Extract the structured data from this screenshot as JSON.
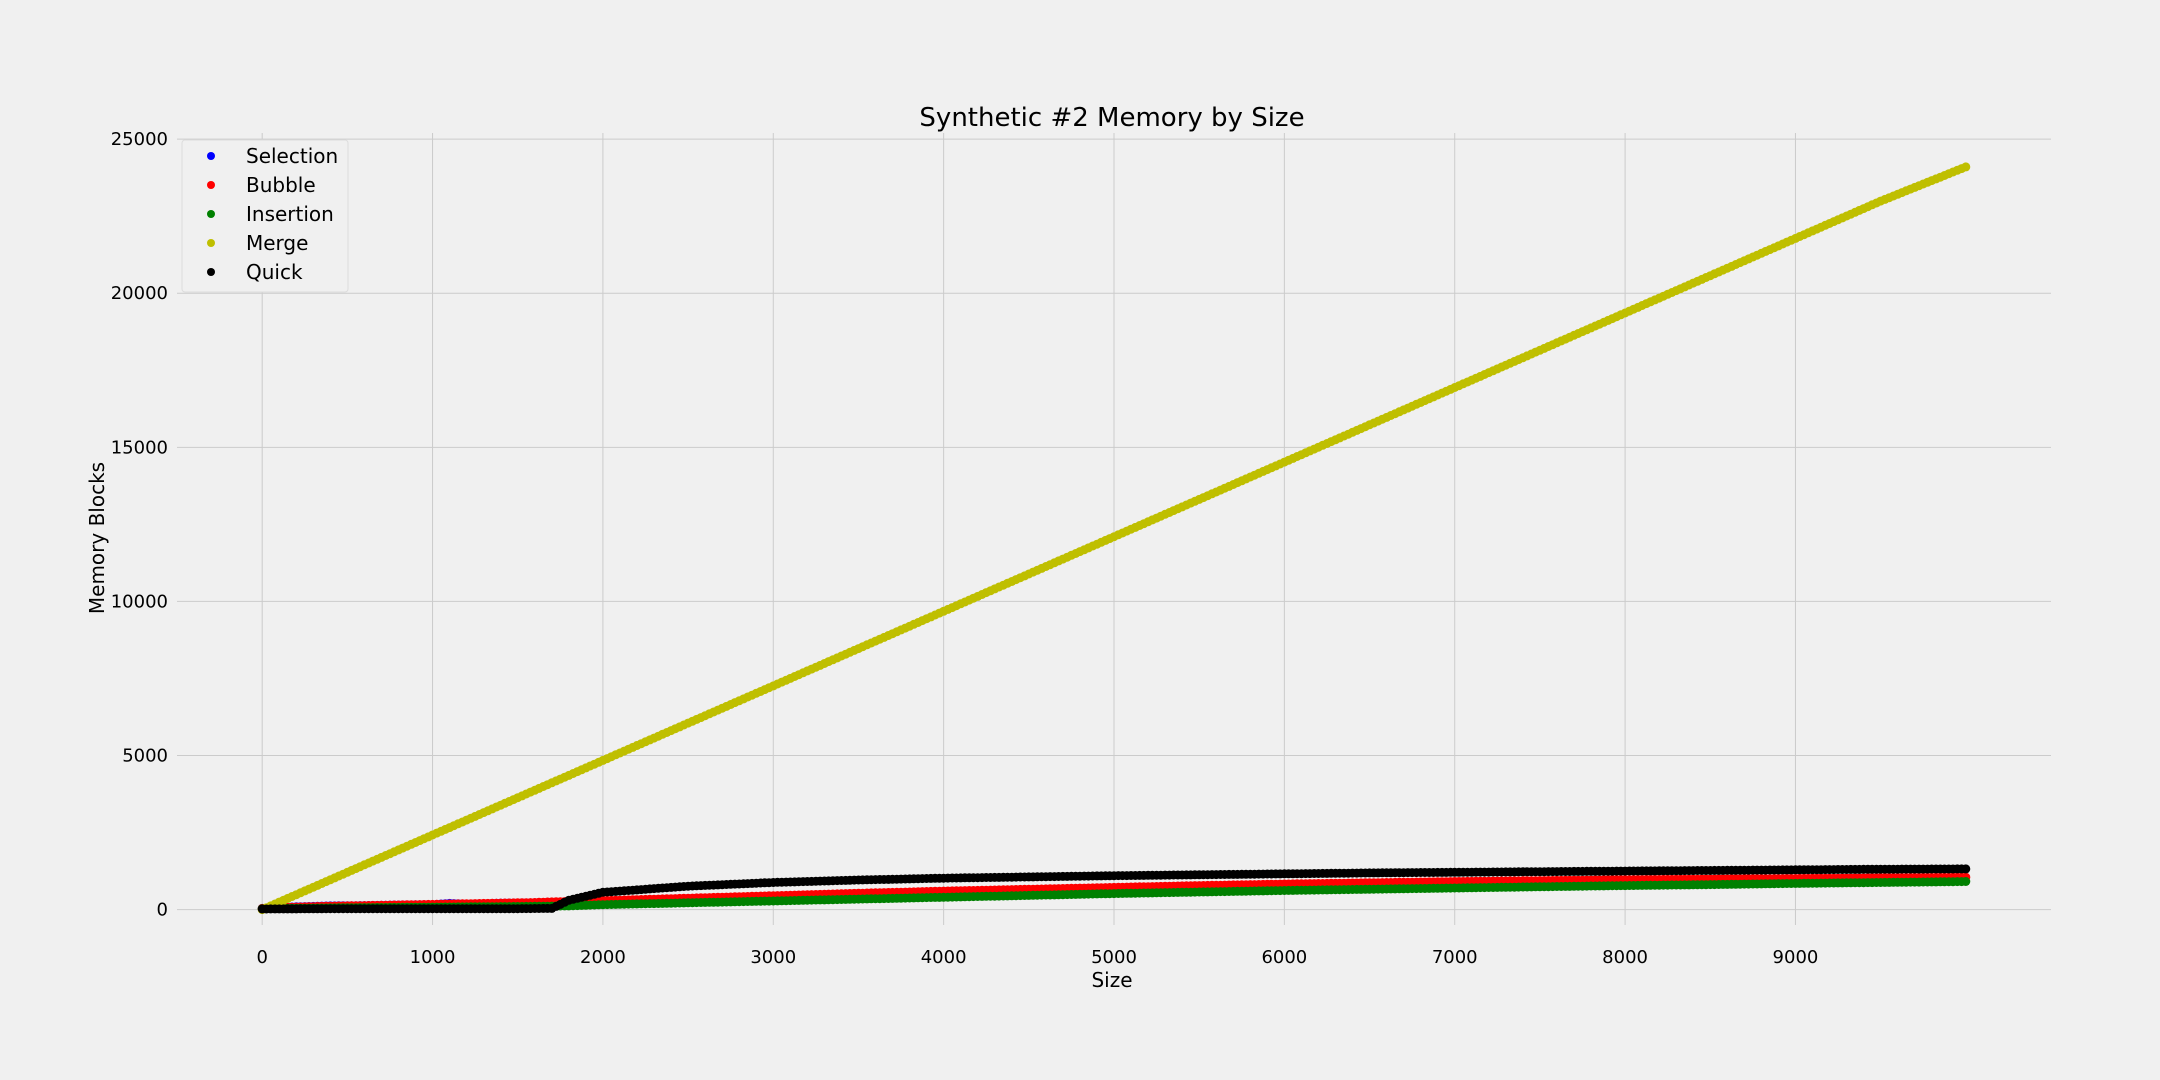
{
  "chart_data": {
    "type": "scatter",
    "title": "Synthetic #2 Memory by Size",
    "xlabel": "Size",
    "ylabel": "Memory Blocks",
    "xlim": [
      -500,
      10500
    ],
    "ylim": [
      -500,
      25200
    ],
    "xticks": [
      0,
      1000,
      2000,
      3000,
      4000,
      5000,
      6000,
      7000,
      8000,
      9000
    ],
    "xtick_labels": [
      "0",
      "1000",
      "2000",
      "3000",
      "4000",
      "5000",
      "6000",
      "7000",
      "8000",
      "9000"
    ],
    "yticks": [
      0,
      5000,
      10000,
      15000,
      20000,
      25000
    ],
    "ytick_labels": [
      "0",
      "5000",
      "10000",
      "15000",
      "20000",
      "25000"
    ],
    "grid": true,
    "legend_position": "top-left",
    "series": [
      {
        "name": "Selection",
        "color": "#0000ff",
        "points": [
          [
            0,
            40
          ],
          [
            200,
            90
          ],
          [
            400,
            120
          ],
          [
            600,
            130
          ],
          [
            800,
            150
          ],
          [
            1000,
            160
          ],
          [
            1100,
            200
          ],
          [
            1200,
            180
          ],
          [
            1300,
            190
          ],
          [
            1400,
            210
          ],
          [
            1600,
            220
          ],
          [
            1700,
            240
          ]
        ]
      },
      {
        "name": "Bubble",
        "color": "#ff0000",
        "points": [
          [
            0,
            40
          ],
          [
            200,
            80
          ],
          [
            400,
            110
          ],
          [
            600,
            130
          ],
          [
            800,
            150
          ],
          [
            1000,
            170
          ],
          [
            1200,
            190
          ],
          [
            1400,
            210
          ],
          [
            1600,
            230
          ],
          [
            1700,
            250
          ],
          [
            2000,
            290
          ],
          [
            2500,
            370
          ],
          [
            3000,
            450
          ],
          [
            3500,
            530
          ],
          [
            4000,
            600
          ],
          [
            4500,
            660
          ],
          [
            5000,
            720
          ],
          [
            5500,
            780
          ],
          [
            6000,
            830
          ],
          [
            6500,
            870
          ],
          [
            7000,
            910
          ],
          [
            7500,
            940
          ],
          [
            8000,
            970
          ],
          [
            8500,
            990
          ],
          [
            9000,
            1010
          ],
          [
            9500,
            1030
          ],
          [
            10000,
            1050
          ]
        ]
      },
      {
        "name": "Insertion",
        "color": "#008000",
        "points": [
          [
            0,
            30
          ],
          [
            500,
            60
          ],
          [
            1000,
            80
          ],
          [
            1500,
            100
          ],
          [
            1800,
            120
          ],
          [
            2000,
            160
          ],
          [
            2500,
            220
          ],
          [
            3000,
            280
          ],
          [
            3500,
            340
          ],
          [
            4000,
            400
          ],
          [
            4500,
            460
          ],
          [
            5000,
            520
          ],
          [
            5500,
            570
          ],
          [
            6000,
            620
          ],
          [
            6500,
            660
          ],
          [
            7000,
            700
          ],
          [
            7500,
            740
          ],
          [
            8000,
            780
          ],
          [
            8500,
            810
          ],
          [
            9000,
            850
          ],
          [
            9500,
            880
          ],
          [
            10000,
            910
          ]
        ]
      },
      {
        "name": "Merge",
        "color": "#bfbf00",
        "points": [
          [
            0,
            0
          ],
          [
            500,
            1210
          ],
          [
            1000,
            2420
          ],
          [
            1500,
            3630
          ],
          [
            2000,
            4840
          ],
          [
            2500,
            6050
          ],
          [
            3000,
            7260
          ],
          [
            3500,
            8470
          ],
          [
            4000,
            9680
          ],
          [
            4500,
            10890
          ],
          [
            5000,
            12100
          ],
          [
            5500,
            13310
          ],
          [
            6000,
            14520
          ],
          [
            6500,
            15730
          ],
          [
            7000,
            16940
          ],
          [
            7500,
            18150
          ],
          [
            8000,
            19360
          ],
          [
            8500,
            20570
          ],
          [
            9000,
            21780
          ],
          [
            9500,
            22990
          ],
          [
            10000,
            24100
          ]
        ]
      },
      {
        "name": "Quick",
        "color": "#000000",
        "points": [
          [
            0,
            20
          ],
          [
            500,
            30
          ],
          [
            1000,
            30
          ],
          [
            1500,
            30
          ],
          [
            1700,
            40
          ],
          [
            1800,
            300
          ],
          [
            2000,
            560
          ],
          [
            2500,
            760
          ],
          [
            3000,
            880
          ],
          [
            3500,
            960
          ],
          [
            4000,
            1020
          ],
          [
            4500,
            1060
          ],
          [
            5000,
            1100
          ],
          [
            5500,
            1130
          ],
          [
            6000,
            1160
          ],
          [
            6500,
            1190
          ],
          [
            7000,
            1210
          ],
          [
            7500,
            1230
          ],
          [
            8000,
            1250
          ],
          [
            8500,
            1270
          ],
          [
            9000,
            1290
          ],
          [
            9500,
            1310
          ],
          [
            10000,
            1320
          ]
        ]
      }
    ]
  }
}
